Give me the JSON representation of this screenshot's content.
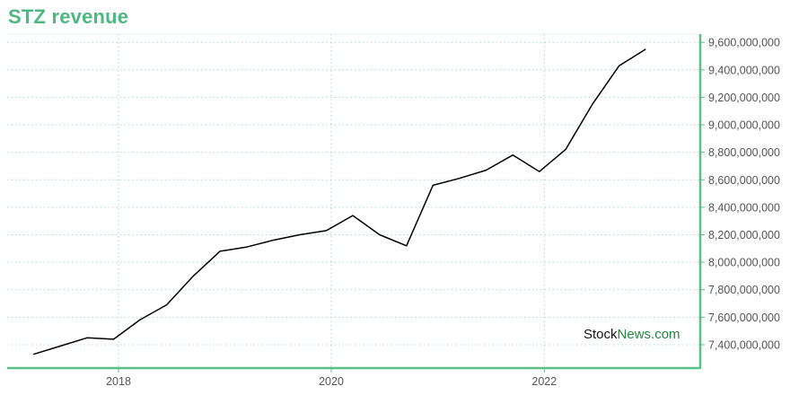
{
  "chart_data": {
    "type": "line",
    "title": "STZ revenue",
    "xlabel": "",
    "ylabel": "",
    "x": [
      "2017-03",
      "2017-06",
      "2017-09",
      "2017-12",
      "2018-03",
      "2018-06",
      "2018-09",
      "2018-12",
      "2019-03",
      "2019-06",
      "2019-09",
      "2019-12",
      "2020-03",
      "2020-06",
      "2020-09",
      "2020-12",
      "2021-03",
      "2021-06",
      "2021-09",
      "2021-12",
      "2022-03",
      "2022-06",
      "2022-09",
      "2022-12"
    ],
    "x_ticks": [
      "2018",
      "2020",
      "2022"
    ],
    "y_ticks": [
      "7,400,000,000",
      "7,600,000,000",
      "7,800,000,000",
      "8,000,000,000",
      "8,200,000,000",
      "8,400,000,000",
      "8,600,000,000",
      "8,800,000,000",
      "9,000,000,000",
      "9,200,000,000",
      "9,400,000,000",
      "9,600,000,000"
    ],
    "series": [
      {
        "values": [
          7330000000,
          7390000000,
          7450000000,
          7440000000,
          7580000000,
          7690000000,
          7900000000,
          8080000000,
          8110000000,
          8160000000,
          8200000000,
          8230000000,
          8340000000,
          8200000000,
          8120000000,
          8560000000,
          8610000000,
          8670000000,
          8780000000,
          8660000000,
          8820000000,
          9150000000,
          9430000000,
          9550000000
        ]
      }
    ],
    "ylim": [
      7230000000,
      9660000000
    ],
    "xlim": [
      "2016-12-15",
      "2023-06-20"
    ],
    "grid": true,
    "line_color": "#000000",
    "grid_color": "#a8dcc4",
    "axis_color": "#5bbf86",
    "title_color": "#4db87f"
  },
  "watermark": {
    "part1": "Stock",
    "part2": "News.com"
  }
}
